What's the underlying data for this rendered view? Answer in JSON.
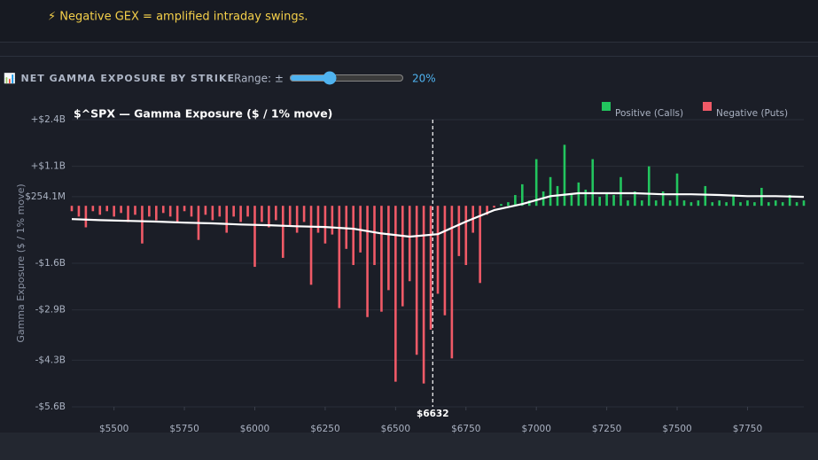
{
  "banner": {
    "text": "⚡ Negative GEX = amplified intraday swings."
  },
  "toolbar": {
    "title": "📊 NET GAMMA EXPOSURE BY STRIKE",
    "range_label": "Range: ±",
    "range_value": 20,
    "range_value_label": "20%"
  },
  "chart_data": {
    "type": "bar",
    "title": "$^SPX — Gamma Exposure ($ / 1% move)",
    "y_label": "Gamma Exposure ($ / 1% move)",
    "legend": [
      {
        "name": "Positive (Calls)",
        "color": "#22c55e"
      },
      {
        "name": "Negative (Puts)",
        "color": "#f05a67"
      }
    ],
    "x": [
      5350,
      5375,
      5400,
      5425,
      5450,
      5475,
      5500,
      5525,
      5550,
      5575,
      5600,
      5625,
      5650,
      5675,
      5700,
      5725,
      5750,
      5775,
      5800,
      5825,
      5850,
      5875,
      5900,
      5925,
      5950,
      5975,
      6000,
      6025,
      6050,
      6075,
      6100,
      6125,
      6150,
      6175,
      6200,
      6225,
      6250,
      6275,
      6300,
      6325,
      6350,
      6375,
      6400,
      6425,
      6450,
      6475,
      6500,
      6525,
      6550,
      6575,
      6600,
      6625,
      6650,
      6675,
      6700,
      6725,
      6750,
      6775,
      6800,
      6825,
      6850,
      6875,
      6900,
      6925,
      6950,
      6975,
      7000,
      7025,
      7050,
      7075,
      7100,
      7125,
      7150,
      7175,
      7200,
      7225,
      7250,
      7275,
      7300,
      7325,
      7350,
      7375,
      7400,
      7425,
      7450,
      7475,
      7500,
      7525,
      7550,
      7575,
      7600,
      7625,
      7650,
      7675,
      7700,
      7725,
      7750,
      7775,
      7800,
      7825,
      7850,
      7875,
      7900,
      7925,
      7950
    ],
    "values": [
      -150000000.0,
      -300000000.0,
      -600000000.0,
      -150000000.0,
      -250000000.0,
      -150000000.0,
      -300000000.0,
      -200000000.0,
      -450000000.0,
      -250000000.0,
      -1050000000.0,
      -300000000.0,
      -400000000.0,
      -200000000.0,
      -300000000.0,
      -450000000.0,
      -150000000.0,
      -300000000.0,
      -950000000.0,
      -250000000.0,
      -400000000.0,
      -300000000.0,
      -750000000.0,
      -300000000.0,
      -450000000.0,
      -300000000.0,
      -1700000000.0,
      -450000000.0,
      -600000000.0,
      -400000000.0,
      -1450000000.0,
      -550000000.0,
      -750000000.0,
      -450000000.0,
      -2200000000.0,
      -750000000.0,
      -1050000000.0,
      -800000000.0,
      -2850000000.0,
      -1200000000.0,
      -1650000000.0,
      -1300000000.0,
      -3100000000.0,
      -1650000000.0,
      -2950000000.0,
      -2350000000.0,
      -4900000000.0,
      -2800000000.0,
      -2100000000.0,
      -4150000000.0,
      -4950000000.0,
      -3450000000.0,
      -2450000000.0,
      -3050000000.0,
      -4250000000.0,
      -1400000000.0,
      -1650000000.0,
      -750000000.0,
      -2150000000.0,
      -250000000.0,
      -50000000.0,
      50000000.0,
      100000000.0,
      300000000.0,
      600000000.0,
      150000000.0,
      1300000000.0,
      400000000.0,
      800000000.0,
      550000000.0,
      1700000000.0,
      350000000.0,
      650000000.0,
      450000000.0,
      1300000000.0,
      250000000.0,
      350000000.0,
      300000000.0,
      800000000.0,
      150000000.0,
      400000000.0,
      150000000.0,
      1100000000.0,
      150000000.0,
      400000000.0,
      150000000.0,
      900000000.0,
      150000000.0,
      100000000.0,
      150000000.0,
      550000000.0,
      100000000.0,
      150000000.0,
      100000000.0,
      300000000.0,
      100000000.0,
      150000000.0,
      100000000.0,
      500000000.0,
      100000000.0,
      150000000.0,
      100000000.0,
      300000000.0,
      100000000.0,
      150000000.0
    ],
    "line": {
      "color": "#ffffff",
      "x": [
        5350,
        5450,
        5550,
        5650,
        5750,
        5850,
        5950,
        6050,
        6150,
        6250,
        6350,
        6450,
        6550,
        6650,
        6750,
        6850,
        6950,
        7050,
        7150,
        7250,
        7350,
        7450,
        7550,
        7650,
        7750,
        7850,
        7950
      ],
      "values": [
        -370000000.0,
        -400000000.0,
        -420000000.0,
        -440000000.0,
        -470000000.0,
        -490000000.0,
        -520000000.0,
        -540000000.0,
        -570000000.0,
        -590000000.0,
        -640000000.0,
        -770000000.0,
        -860000000.0,
        -790000000.0,
        -440000000.0,
        -120000000.0,
        50000000.0,
        270000000.0,
        350000000.0,
        350000000.0,
        350000000.0,
        320000000.0,
        320000000.0,
        300000000.0,
        270000000.0,
        270000000.0,
        250000000.0
      ]
    },
    "spot": {
      "value": 6632,
      "label": "$6632"
    },
    "xlim": [
      5350,
      7950
    ],
    "xticks": [
      {
        "value": 5500,
        "label": "$5500"
      },
      {
        "value": 5750,
        "label": "$5750"
      },
      {
        "value": 6000,
        "label": "$6000"
      },
      {
        "value": 6250,
        "label": "$6250"
      },
      {
        "value": 6500,
        "label": "$6500"
      },
      {
        "value": 6750,
        "label": "$6750"
      },
      {
        "value": 7000,
        "label": "$7000"
      },
      {
        "value": 7250,
        "label": "$7250"
      },
      {
        "value": 7500,
        "label": "$7500"
      },
      {
        "value": 7750,
        "label": "$7750"
      }
    ],
    "ylim": [
      -5600000000,
      2400000000
    ],
    "yticks": [
      {
        "value": 2400000000,
        "label": "+$2.4B"
      },
      {
        "value": 1100000000,
        "label": "+$1.1B"
      },
      {
        "value": 254100000,
        "label": "$254.1M"
      },
      {
        "value": -1600000000,
        "label": "-$1.6B"
      },
      {
        "value": -2900000000,
        "label": "-$2.9B"
      },
      {
        "value": -4300000000,
        "label": "-$4.3B"
      },
      {
        "value": -5600000000,
        "label": "-$5.6B"
      }
    ],
    "grid": true
  }
}
